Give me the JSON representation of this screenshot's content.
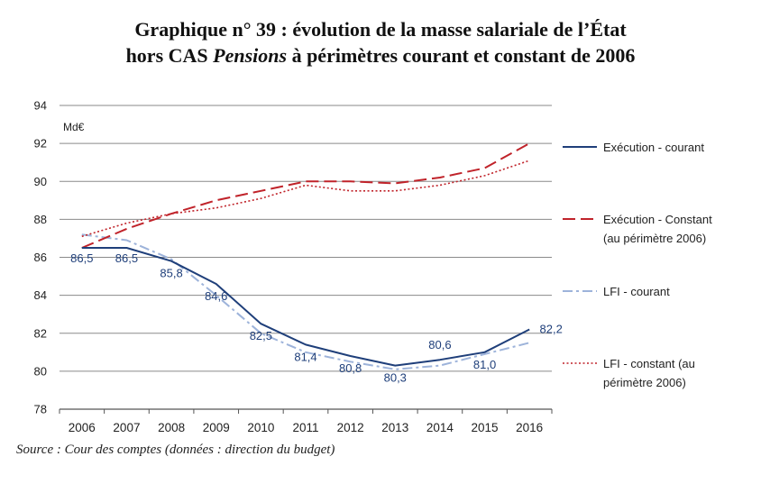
{
  "title": {
    "line1": "Graphique n° 39 : évolution de la masse salariale de l’État",
    "line2_prefix": "hors CAS ",
    "line2_italic": "Pensions",
    "line2_suffix": " à périmètres courant et constant de 2006"
  },
  "source": "Source : Cour des comptes (données : direction du budget)",
  "chart_data": {
    "type": "line",
    "unit_label": "Md€",
    "x": [
      "2006",
      "2007",
      "2008",
      "2009",
      "2010",
      "2011",
      "2012",
      "2013",
      "2014",
      "2015",
      "2016"
    ],
    "ylim": [
      78,
      94
    ],
    "yticks": [
      "78",
      "80",
      "82",
      "84",
      "86",
      "88",
      "90",
      "92",
      "94"
    ],
    "grid": true,
    "legend_position": "right",
    "series": [
      {
        "name_lines": [
          "Exécution - courant"
        ],
        "color": "#1f3f7a",
        "style": "solid",
        "values": [
          86.5,
          86.5,
          85.8,
          84.6,
          82.5,
          81.4,
          80.8,
          80.3,
          80.6,
          81.0,
          82.2
        ],
        "labels": [
          "86,5",
          "86,5",
          "85,8",
          "84,6",
          "82,5",
          "81,4",
          "80,8",
          "80,3",
          "80,6",
          "81,0",
          "82,2"
        ]
      },
      {
        "name_lines": [
          "Exécution - Constant",
          "(au périmètre 2006)"
        ],
        "color": "#c0232a",
        "style": "dashed",
        "values": [
          86.5,
          87.5,
          88.3,
          89.0,
          89.5,
          90.0,
          90.0,
          89.9,
          90.2,
          90.7,
          92.0
        ]
      },
      {
        "name_lines": [
          "LFI - courant"
        ],
        "color": "#9db3da",
        "style": "dashdot",
        "values": [
          87.2,
          86.9,
          85.9,
          84.0,
          82.0,
          81.0,
          80.5,
          80.1,
          80.3,
          80.9,
          81.5
        ]
      },
      {
        "name_lines": [
          "LFI - constant (au",
          "périmètre 2006)"
        ],
        "color": "#c0232a",
        "style": "dotted",
        "values": [
          87.1,
          87.8,
          88.3,
          88.6,
          89.1,
          89.8,
          89.5,
          89.5,
          89.8,
          90.3,
          91.1
        ]
      }
    ]
  }
}
